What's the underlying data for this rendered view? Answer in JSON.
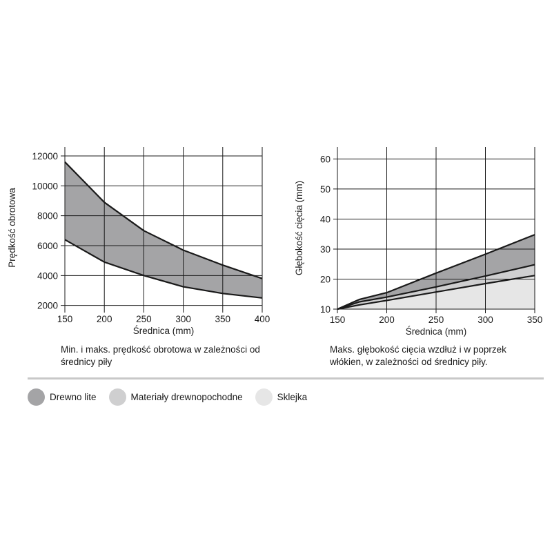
{
  "colors": {
    "drewno_lite": "#a4a4a6",
    "materialy": "#cfcfd0",
    "sklejka": "#e6e6e6",
    "line": "#1a1a1a",
    "grid": "#1a1a1a"
  },
  "chart_data": [
    {
      "type": "area",
      "title": "",
      "xlabel": "Średnica (mm)",
      "ylabel": "Prędkość obrotowa",
      "x_ticks": [
        150,
        200,
        250,
        300,
        350,
        400
      ],
      "y_ticks": [
        2000,
        4000,
        6000,
        8000,
        10000,
        12000
      ],
      "xlim": [
        150,
        400
      ],
      "ylim": [
        1800,
        12600
      ],
      "grid": true,
      "band_fill": "drewno_lite",
      "series": [
        {
          "x": [
            150,
            200,
            250,
            300,
            350,
            400
          ],
          "values": [
            11600,
            8900,
            7000,
            5700,
            4700,
            3800
          ]
        },
        {
          "x": [
            150,
            200,
            250,
            300,
            350,
            400
          ],
          "values": [
            6400,
            4900,
            4000,
            3250,
            2800,
            2500
          ]
        }
      ],
      "caption": "Min. i maks. prędkość obrotowa w zależności od średnicy piły"
    },
    {
      "type": "area",
      "title": "",
      "xlabel": "Średnica (mm)",
      "ylabel": "Głębokość cięcia (mm)",
      "x_ticks": [
        150,
        200,
        250,
        300,
        350
      ],
      "y_ticks": [
        10,
        20,
        30,
        40,
        50,
        60
      ],
      "xlim": [
        150,
        350
      ],
      "ylim": [
        10,
        64
      ],
      "grid": true,
      "series": [
        {
          "fill": "drewno_lite",
          "x": [
            150,
            172,
            200,
            250,
            300,
            350
          ],
          "values": [
            10,
            13.2,
            15.5,
            22,
            28.3,
            34.8
          ]
        },
        {
          "fill": "materialy",
          "x": [
            150,
            172,
            200,
            250,
            300,
            350
          ],
          "values": [
            10,
            12.4,
            14,
            17.4,
            21,
            24.8
          ]
        },
        {
          "fill": "sklejka",
          "x": [
            150,
            172,
            200,
            250,
            300,
            350
          ],
          "values": [
            10,
            11.4,
            12.9,
            15.7,
            18.5,
            21.2
          ]
        }
      ],
      "caption": "Maks. głębokość cięcia wzdłuż i w poprzek włókien, w zależności od średnicy piły."
    }
  ],
  "legend": [
    {
      "label": "Drewno lite",
      "color": "#a4a4a6"
    },
    {
      "label": "Materiały drewnopochodne",
      "color": "#cfcfd0"
    },
    {
      "label": "Sklejka",
      "color": "#e6e6e6"
    }
  ]
}
